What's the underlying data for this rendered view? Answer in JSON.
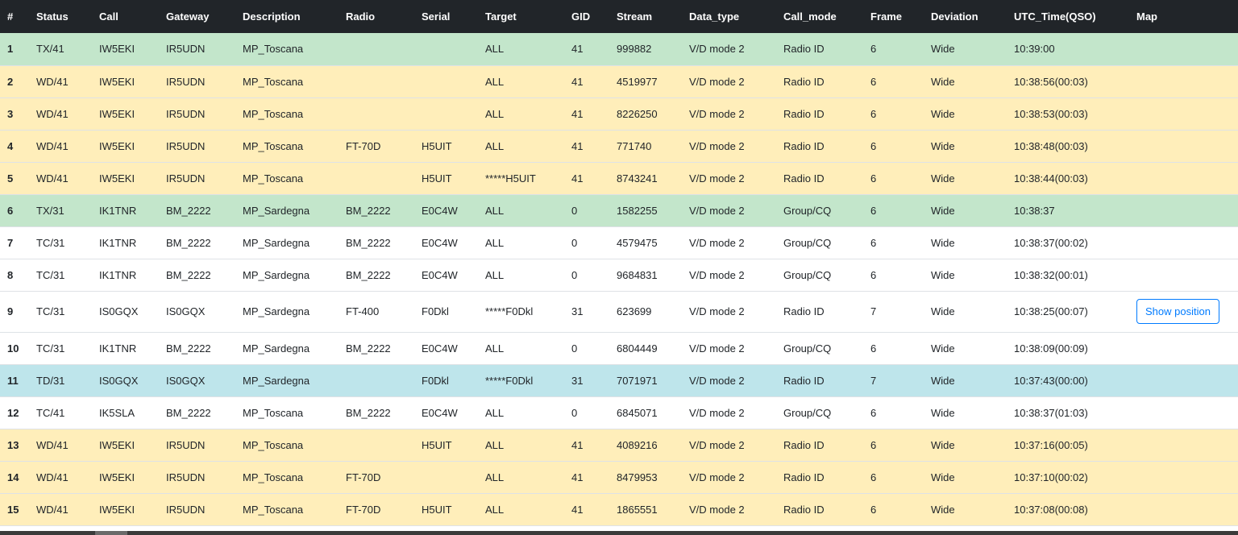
{
  "headers": [
    "#",
    "Status",
    "Call",
    "Gateway",
    "Description",
    "Radio",
    "Serial",
    "Target",
    "GID",
    "Stream",
    "Data_type",
    "Call_mode",
    "Frame",
    "Deviation",
    "UTC_Time(QSO)",
    "Map"
  ],
  "rows": [
    {
      "n": "1",
      "status": "TX/41",
      "call": "IW5EKI",
      "gateway": "IR5UDN",
      "description": "MP_Toscana",
      "radio": "",
      "serial": "",
      "target": "ALL",
      "gid": "41",
      "stream": "999882",
      "data_type": "V/D mode 2",
      "call_mode": "Radio ID",
      "frame": "6",
      "deviation": "Wide",
      "utc": "10:39:00",
      "map": ""
    },
    {
      "n": "2",
      "status": "WD/41",
      "call": "IW5EKI",
      "gateway": "IR5UDN",
      "description": "MP_Toscana",
      "radio": "",
      "serial": "",
      "target": "ALL",
      "gid": "41",
      "stream": "4519977",
      "data_type": "V/D mode 2",
      "call_mode": "Radio ID",
      "frame": "6",
      "deviation": "Wide",
      "utc": "10:38:56(00:03)",
      "map": ""
    },
    {
      "n": "3",
      "status": "WD/41",
      "call": "IW5EKI",
      "gateway": "IR5UDN",
      "description": "MP_Toscana",
      "radio": "",
      "serial": "",
      "target": "ALL",
      "gid": "41",
      "stream": "8226250",
      "data_type": "V/D mode 2",
      "call_mode": "Radio ID",
      "frame": "6",
      "deviation": "Wide",
      "utc": "10:38:53(00:03)",
      "map": ""
    },
    {
      "n": "4",
      "status": "WD/41",
      "call": "IW5EKI",
      "gateway": "IR5UDN",
      "description": "MP_Toscana",
      "radio": "FT-70D",
      "serial": "H5UIT",
      "target": "ALL",
      "gid": "41",
      "stream": "771740",
      "data_type": "V/D mode 2",
      "call_mode": "Radio ID",
      "frame": "6",
      "deviation": "Wide",
      "utc": "10:38:48(00:03)",
      "map": ""
    },
    {
      "n": "5",
      "status": "WD/41",
      "call": "IW5EKI",
      "gateway": "IR5UDN",
      "description": "MP_Toscana",
      "radio": "",
      "serial": "H5UIT",
      "target": "*****H5UIT",
      "gid": "41",
      "stream": "8743241",
      "data_type": "V/D mode 2",
      "call_mode": "Radio ID",
      "frame": "6",
      "deviation": "Wide",
      "utc": "10:38:44(00:03)",
      "map": ""
    },
    {
      "n": "6",
      "status": "TX/31",
      "call": "IK1TNR",
      "gateway": "BM_2222",
      "description": "MP_Sardegna",
      "radio": "BM_2222",
      "serial": "E0C4W",
      "target": "ALL",
      "gid": "0",
      "stream": "1582255",
      "data_type": "V/D mode 2",
      "call_mode": "Group/CQ",
      "frame": "6",
      "deviation": "Wide",
      "utc": "10:38:37",
      "map": ""
    },
    {
      "n": "7",
      "status": "TC/31",
      "call": "IK1TNR",
      "gateway": "BM_2222",
      "description": "MP_Sardegna",
      "radio": "BM_2222",
      "serial": "E0C4W",
      "target": "ALL",
      "gid": "0",
      "stream": "4579475",
      "data_type": "V/D mode 2",
      "call_mode": "Group/CQ",
      "frame": "6",
      "deviation": "Wide",
      "utc": "10:38:37(00:02)",
      "map": ""
    },
    {
      "n": "8",
      "status": "TC/31",
      "call": "IK1TNR",
      "gateway": "BM_2222",
      "description": "MP_Sardegna",
      "radio": "BM_2222",
      "serial": "E0C4W",
      "target": "ALL",
      "gid": "0",
      "stream": "9684831",
      "data_type": "V/D mode 2",
      "call_mode": "Group/CQ",
      "frame": "6",
      "deviation": "Wide",
      "utc": "10:38:32(00:01)",
      "map": ""
    },
    {
      "n": "9",
      "status": "TC/31",
      "call": "IS0GQX",
      "gateway": "IS0GQX",
      "description": "MP_Sardegna",
      "radio": "FT-400",
      "serial": "F0Dkl",
      "target": "*****F0Dkl",
      "gid": "31",
      "stream": "623699",
      "data_type": "V/D mode 2",
      "call_mode": "Radio ID",
      "frame": "7",
      "deviation": "Wide",
      "utc": "10:38:25(00:07)",
      "map": "Show position"
    },
    {
      "n": "10",
      "status": "TC/31",
      "call": "IK1TNR",
      "gateway": "BM_2222",
      "description": "MP_Sardegna",
      "radio": "BM_2222",
      "serial": "E0C4W",
      "target": "ALL",
      "gid": "0",
      "stream": "6804449",
      "data_type": "V/D mode 2",
      "call_mode": "Group/CQ",
      "frame": "6",
      "deviation": "Wide",
      "utc": "10:38:09(00:09)",
      "map": ""
    },
    {
      "n": "11",
      "status": "TD/31",
      "call": "IS0GQX",
      "gateway": "IS0GQX",
      "description": "MP_Sardegna",
      "radio": "",
      "serial": "F0Dkl",
      "target": "*****F0Dkl",
      "gid": "31",
      "stream": "7071971",
      "data_type": "V/D mode 2",
      "call_mode": "Radio ID",
      "frame": "7",
      "deviation": "Wide",
      "utc": "10:37:43(00:00)",
      "map": ""
    },
    {
      "n": "12",
      "status": "TC/41",
      "call": "IK5SLA",
      "gateway": "BM_2222",
      "description": "MP_Toscana",
      "radio": "BM_2222",
      "serial": "E0C4W",
      "target": "ALL",
      "gid": "0",
      "stream": "6845071",
      "data_type": "V/D mode 2",
      "call_mode": "Group/CQ",
      "frame": "6",
      "deviation": "Wide",
      "utc": "10:38:37(01:03)",
      "map": ""
    },
    {
      "n": "13",
      "status": "WD/41",
      "call": "IW5EKI",
      "gateway": "IR5UDN",
      "description": "MP_Toscana",
      "radio": "",
      "serial": "H5UIT",
      "target": "ALL",
      "gid": "41",
      "stream": "4089216",
      "data_type": "V/D mode 2",
      "call_mode": "Radio ID",
      "frame": "6",
      "deviation": "Wide",
      "utc": "10:37:16(00:05)",
      "map": ""
    },
    {
      "n": "14",
      "status": "WD/41",
      "call": "IW5EKI",
      "gateway": "IR5UDN",
      "description": "MP_Toscana",
      "radio": "FT-70D",
      "serial": "",
      "target": "ALL",
      "gid": "41",
      "stream": "8479953",
      "data_type": "V/D mode 2",
      "call_mode": "Radio ID",
      "frame": "6",
      "deviation": "Wide",
      "utc": "10:37:10(00:02)",
      "map": ""
    },
    {
      "n": "15",
      "status": "WD/41",
      "call": "IW5EKI",
      "gateway": "IR5UDN",
      "description": "MP_Toscana",
      "radio": "FT-70D",
      "serial": "H5UIT",
      "target": "ALL",
      "gid": "41",
      "stream": "1865551",
      "data_type": "V/D mode 2",
      "call_mode": "Radio ID",
      "frame": "6",
      "deviation": "Wide",
      "utc": "10:37:08(00:08)",
      "map": ""
    }
  ],
  "colors": {
    "header_bg": "#212529",
    "TX": "#c3e6cb",
    "WD": "#ffeeba",
    "TC": "#ffffff",
    "TD": "#bee5eb",
    "button": "#007bff"
  }
}
